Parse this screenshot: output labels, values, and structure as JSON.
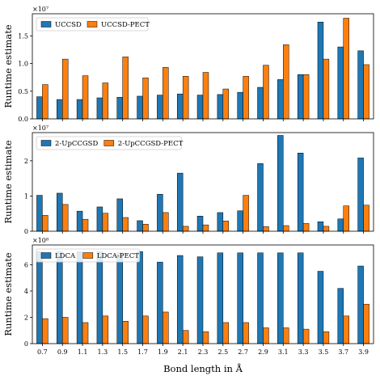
{
  "chart_data": {
    "type": "bar",
    "categories": [
      "0.7",
      "0.9",
      "1.1",
      "1.3",
      "1.5",
      "1.7",
      "1.9",
      "2.1",
      "2.3",
      "2.5",
      "2.7",
      "2.9",
      "3.1",
      "3.3",
      "3.5",
      "3.7",
      "3.9"
    ],
    "xlabel": "Bond length in Å",
    "colors": {
      "first": "#1f77b4",
      "second": "#ff7f0e"
    },
    "panels": [
      {
        "ylabel": "Runtime estimate",
        "multiplier_label": "×10⁷",
        "scale": 10000000,
        "ylim": [
          0,
          1.9
        ],
        "yticks": [
          0,
          0.5,
          1.0,
          1.5
        ],
        "ytick_labels": [
          "0.0",
          "0.5",
          "1.0",
          "1.5"
        ],
        "legend_position": "top-left",
        "series": [
          {
            "name": "UCCSD",
            "values": [
              0.4,
              0.35,
              0.35,
              0.38,
              0.39,
              0.41,
              0.43,
              0.45,
              0.43,
              0.44,
              0.48,
              0.57,
              0.71,
              0.8,
              1.75,
              1.3,
              1.23
            ]
          },
          {
            "name": "UCCSD-PECT",
            "values": [
              0.62,
              1.08,
              0.78,
              0.65,
              1.12,
              0.74,
              0.93,
              0.77,
              0.84,
              0.54,
              0.77,
              0.97,
              1.34,
              0.8,
              1.08,
              1.82,
              0.98
            ]
          }
        ]
      },
      {
        "ylabel": "Runtime estimate",
        "multiplier_label": "×10⁷",
        "scale": 10000000,
        "ylim": [
          0,
          2.8
        ],
        "yticks": [
          0,
          1,
          2
        ],
        "ytick_labels": [
          "0",
          "1",
          "2"
        ],
        "legend_position": "top-left",
        "series": [
          {
            "name": "2-UpCCGSD",
            "values": [
              1.02,
              1.08,
              0.57,
              0.69,
              0.92,
              0.3,
              1.05,
              1.65,
              0.43,
              0.53,
              0.58,
              1.92,
              2.72,
              2.22,
              0.27,
              0.35,
              2.08
            ]
          },
          {
            "name": "2-UpCCGSD-PECT",
            "values": [
              0.45,
              0.76,
              0.34,
              0.51,
              0.39,
              0.2,
              0.53,
              0.14,
              0.18,
              0.29,
              1.02,
              0.13,
              0.16,
              0.22,
              0.14,
              0.72,
              0.74
            ]
          }
        ]
      },
      {
        "ylabel": "Runtime estimate",
        "multiplier_label": "×10⁸",
        "scale": 100000000,
        "ylim": [
          0,
          7.5
        ],
        "yticks": [
          0,
          2,
          4,
          6
        ],
        "ytick_labels": [
          "0",
          "2",
          "4",
          "6"
        ],
        "legend_position": "top-left",
        "series": [
          {
            "name": "LDCA",
            "values": [
              7.0,
              7.0,
              7.0,
              7.0,
              6.9,
              7.0,
              6.2,
              6.7,
              6.6,
              6.9,
              6.9,
              6.9,
              6.9,
              6.9,
              5.5,
              4.2,
              5.9
            ]
          },
          {
            "name": "LDCA-PECT",
            "values": [
              1.9,
              2.0,
              1.6,
              2.1,
              1.7,
              2.1,
              2.4,
              1.0,
              0.9,
              1.6,
              1.6,
              1.2,
              1.2,
              1.1,
              0.9,
              2.1,
              3.0
            ]
          }
        ]
      }
    ]
  }
}
